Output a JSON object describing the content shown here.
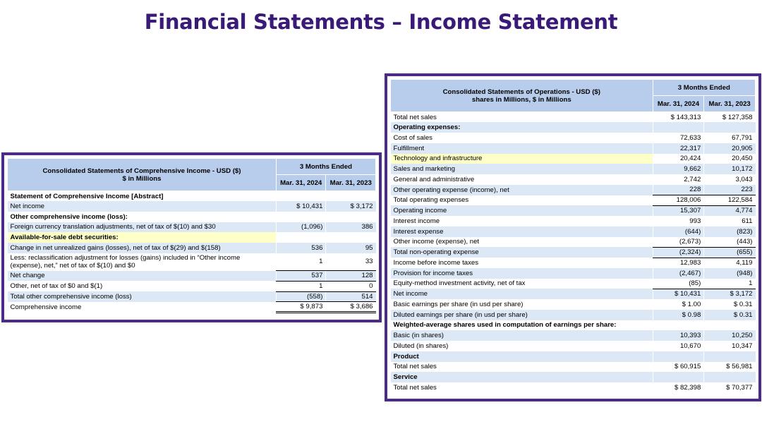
{
  "slide": {
    "title": "Financial Statements – Income Statement"
  },
  "comprehensive": {
    "header": {
      "title": "Consolidated Statements of Comprehensive Income - USD ($)",
      "subtitle": "$ in Millions",
      "period": "3 Months Ended",
      "col1": "Mar. 31, 2024",
      "col2": "Mar. 31, 2023"
    },
    "rows": [
      {
        "label": "Statement of Comprehensive Income [Abstract]",
        "v1": "",
        "v2": ""
      },
      {
        "label": "Net income",
        "v1": "$ 10,431",
        "v2": "$ 3,172"
      },
      {
        "label": "Other comprehensive income (loss):",
        "v1": "",
        "v2": ""
      },
      {
        "label": "Foreign currency translation adjustments, net of tax of $(10) and $30",
        "v1": "(1,096)",
        "v2": "386"
      },
      {
        "label": "Available-for-sale debt securities:",
        "v1": "",
        "v2": ""
      },
      {
        "label": "Change in net unrealized gains (losses), net of tax of $(29) and $(158)",
        "v1": "536",
        "v2": "95"
      },
      {
        "label": "Less: reclassification adjustment for losses (gains) included in “Other income (expense), net,” net of tax of $(10) and $0",
        "v1": "1",
        "v2": "33"
      },
      {
        "label": "Net change",
        "v1": "537",
        "v2": "128"
      },
      {
        "label": "Other, net of tax of $0 and $(1)",
        "v1": "1",
        "v2": "0"
      },
      {
        "label": "Total other comprehensive income (loss)",
        "v1": "(558)",
        "v2": "514"
      },
      {
        "label": "Comprehensive income",
        "v1": "$ 9,873",
        "v2": "$ 3,686"
      }
    ]
  },
  "operations": {
    "header": {
      "title": "Consolidated Statements of Operations - USD ($)",
      "subtitle": "shares in Millions, $ in Millions",
      "period": "3 Months Ended",
      "col1": "Mar. 31, 2024",
      "col2": "Mar. 31, 2023"
    },
    "rows": [
      {
        "label": "Total net sales",
        "v1": "$ 143,313",
        "v2": "$ 127,358"
      },
      {
        "label": "Operating expenses:",
        "v1": "",
        "v2": ""
      },
      {
        "label": "Cost of sales",
        "v1": "72,633",
        "v2": "67,791"
      },
      {
        "label": "Fulfillment",
        "v1": "22,317",
        "v2": "20,905"
      },
      {
        "label": "Technology and infrastructure",
        "v1": "20,424",
        "v2": "20,450"
      },
      {
        "label": "Sales and marketing",
        "v1": "9,662",
        "v2": "10,172"
      },
      {
        "label": "General and administrative",
        "v1": "2,742",
        "v2": "3,043"
      },
      {
        "label": "Other operating expense (income), net",
        "v1": "228",
        "v2": "223"
      },
      {
        "label": "Total operating expenses",
        "v1": "128,006",
        "v2": "122,584"
      },
      {
        "label": "Operating income",
        "v1": "15,307",
        "v2": "4,774"
      },
      {
        "label": "Interest income",
        "v1": "993",
        "v2": "611"
      },
      {
        "label": "Interest expense",
        "v1": "(644)",
        "v2": "(823)"
      },
      {
        "label": "Other income (expense), net",
        "v1": "(2,673)",
        "v2": "(443)"
      },
      {
        "label": "Total non-operating expense",
        "v1": "(2,324)",
        "v2": "(655)"
      },
      {
        "label": "Income before income taxes",
        "v1": "12,983",
        "v2": "4,119"
      },
      {
        "label": "Provision for income taxes",
        "v1": "(2,467)",
        "v2": "(948)"
      },
      {
        "label": "Equity-method investment activity, net of tax",
        "v1": "(85)",
        "v2": "1"
      },
      {
        "label": "Net income",
        "v1": "$ 10,431",
        "v2": "$ 3,172"
      },
      {
        "label": "Basic earnings per share (in usd per share)",
        "v1": "$ 1.00",
        "v2": "$ 0.31"
      },
      {
        "label": "Diluted earnings per share (in usd per share)",
        "v1": "$ 0.98",
        "v2": "$ 0.31"
      },
      {
        "label": "Weighted-average shares used in computation of earnings per share:",
        "v1": "",
        "v2": ""
      },
      {
        "label": "Basic (in shares)",
        "v1": "10,393",
        "v2": "10,250"
      },
      {
        "label": "Diluted (in shares)",
        "v1": "10,670",
        "v2": "10,347"
      },
      {
        "label": "Product",
        "v1": "",
        "v2": ""
      },
      {
        "label": "Total net sales",
        "v1": "$ 60,915",
        "v2": "$ 56,981"
      },
      {
        "label": "Service",
        "v1": "",
        "v2": ""
      },
      {
        "label": "Total net sales",
        "v1": "$ 82,398",
        "v2": "$ 70,377"
      }
    ]
  }
}
